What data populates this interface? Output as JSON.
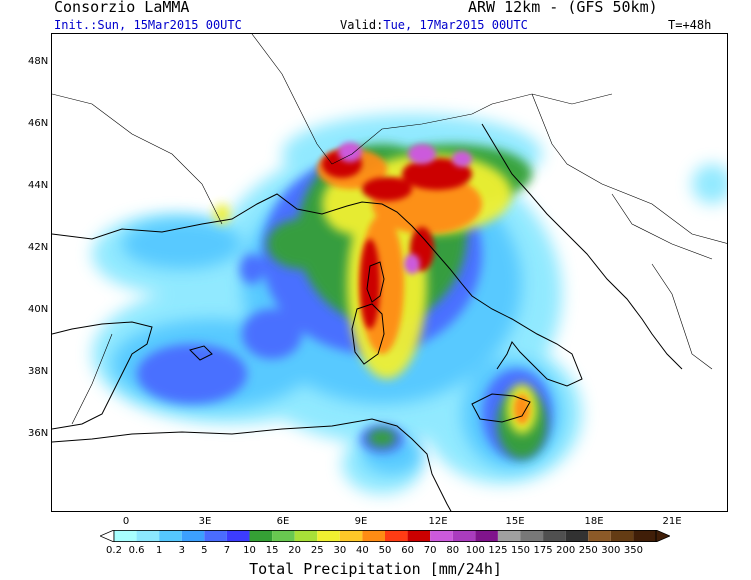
{
  "header": {
    "title": "Consorzio LaMMA",
    "model": "ARW 12km - (GFS 50km)",
    "init_label": "Init.:",
    "init_value": "Sun, 15Mar2015 00UTC",
    "valid_label": "Valid:",
    "valid_value": "Tue, 17Mar2015 00UTC",
    "lead_time": "T=+48h"
  },
  "axes": {
    "lat_labels": [
      "48N",
      "46N",
      "44N",
      "42N",
      "40N",
      "38N",
      "36N"
    ],
    "lon_labels": [
      "0",
      "3E",
      "6E",
      "9E",
      "12E",
      "15E",
      "18E",
      "21E"
    ]
  },
  "colorbar": {
    "title": "Total Precipitation [mm/24h]",
    "ticks": [
      "0.2",
      "0.6",
      "1",
      "3",
      "5",
      "7",
      "10",
      "15",
      "20",
      "25",
      "30",
      "40",
      "50",
      "60",
      "70",
      "80",
      "100",
      "125",
      "150",
      "175",
      "200",
      "250",
      "300",
      "350"
    ],
    "colors": [
      "#a8ffff",
      "#8ce8ff",
      "#55c8ff",
      "#3ca0ff",
      "#4a6cff",
      "#3c3cff",
      "#35a035",
      "#68c850",
      "#a8e038",
      "#f0f030",
      "#ffc828",
      "#ff8c14",
      "#ff3c14",
      "#cc0000",
      "#cc5adc",
      "#aa3cbe",
      "#80148c",
      "#a0a0a0",
      "#787878",
      "#505050",
      "#323232",
      "#8c5a28",
      "#643c14",
      "#401e08"
    ],
    "arrow_left_color": "#ffffff",
    "arrow_right_color": "#401e08"
  },
  "icons": {
    "map_icon": "precipitation-map",
    "coastline_icon": "coastline-outline"
  }
}
